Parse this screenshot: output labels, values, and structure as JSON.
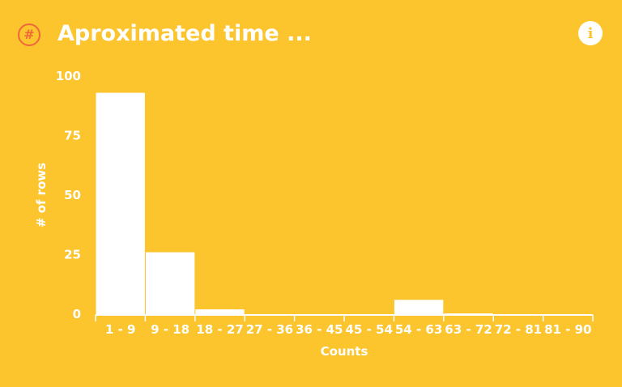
{
  "header": {
    "title": "Aproximated time ...",
    "badge_glyph": "#",
    "badge_icon": "hash-icon",
    "info_glyph": "i",
    "info_icon": "info-icon"
  },
  "colors": {
    "background": "#fcc42d",
    "bars": "#ffffff",
    "badge": "#f0673a"
  },
  "chart_data": {
    "type": "bar",
    "categories": [
      "1 - 9",
      "9 - 18",
      "18 - 27",
      "27 - 36",
      "36 - 45",
      "45 - 54",
      "54 - 63",
      "63 - 72",
      "72 - 81",
      "81 - 90"
    ],
    "values": [
      93,
      26,
      2,
      0,
      0,
      0,
      6,
      0.3,
      0,
      0
    ],
    "title": "Aproximated time ...",
    "xlabel": "Counts",
    "ylabel": "# of rows",
    "ylim": [
      0,
      100
    ],
    "yticks": [
      0,
      25,
      50,
      75,
      100
    ],
    "grid": false
  }
}
